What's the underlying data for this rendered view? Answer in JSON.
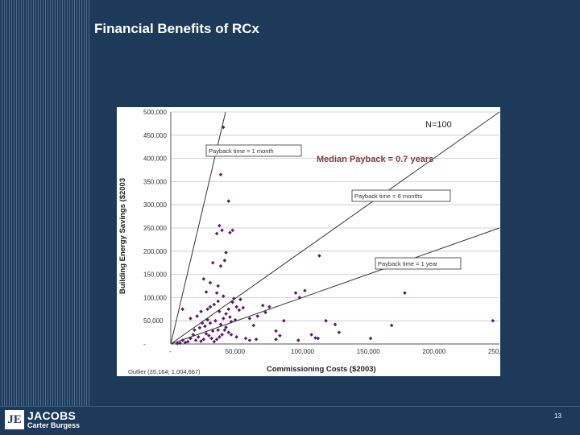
{
  "slide": {
    "title": "Financial Benefits of RCx",
    "page_number": "13"
  },
  "logo": {
    "mark": "JE",
    "name": "JACOBS",
    "subtitle": "Carter Burgess"
  },
  "colors": {
    "background": "#1d3a5b",
    "points": "#5a1a6e",
    "median_text": "#8b3a3a"
  },
  "chart_data": {
    "type": "scatter",
    "xlabel": "Commissioning Costs ($2003)",
    "ylabel": "Building Energy Savings ($2003",
    "xlim": [
      0,
      250000
    ],
    "ylim": [
      0,
      500000
    ],
    "x_ticks": [
      0,
      50000,
      100000,
      150000,
      200000,
      250000
    ],
    "x_tick_labels": [
      "-",
      "50,000",
      "100,000",
      "150,000",
      "200,000",
      "250,000"
    ],
    "y_ticks": [
      0,
      50000,
      100000,
      150000,
      200000,
      250000,
      300000,
      350000,
      400000,
      450000,
      500000
    ],
    "y_tick_labels": [
      "-",
      "50,000",
      "100,000",
      "150,000",
      "200,000",
      "250,000",
      "300,000",
      "350,000",
      "400,000",
      "450,000",
      "500,000"
    ],
    "annotations": {
      "n": "N=100",
      "median": "Median Payback = 0.7 years",
      "outlier": "Outlier (35,164; 1,004,667)"
    },
    "payback_lines": [
      {
        "label": "Payback time = 1 month",
        "months": 1
      },
      {
        "label": "Payback time = 6 months",
        "months": 6
      },
      {
        "label": "Payback time = 1 year",
        "months": 12
      }
    ],
    "points": [
      [
        40000,
        467000
      ],
      [
        38000,
        365000
      ],
      [
        44000,
        308000
      ],
      [
        37000,
        255000
      ],
      [
        39000,
        245000
      ],
      [
        35000,
        238000
      ],
      [
        47000,
        245000
      ],
      [
        45000,
        240000
      ],
      [
        42000,
        197000
      ],
      [
        32000,
        175000
      ],
      [
        41000,
        180000
      ],
      [
        38000,
        168000
      ],
      [
        25000,
        140000
      ],
      [
        30000,
        132000
      ],
      [
        36000,
        125000
      ],
      [
        27000,
        112000
      ],
      [
        35000,
        110000
      ],
      [
        40000,
        103000
      ],
      [
        48000,
        98000
      ],
      [
        53000,
        96000
      ],
      [
        9000,
        75000
      ],
      [
        15000,
        55000
      ],
      [
        20000,
        60000
      ],
      [
        23000,
        70000
      ],
      [
        28000,
        75000
      ],
      [
        30000,
        80000
      ],
      [
        33000,
        85000
      ],
      [
        37000,
        70000
      ],
      [
        42000,
        65000
      ],
      [
        45000,
        58000
      ],
      [
        47000,
        90000
      ],
      [
        50000,
        80000
      ],
      [
        52000,
        73000
      ],
      [
        55000,
        78000
      ],
      [
        60000,
        55000
      ],
      [
        63000,
        40000
      ],
      [
        66000,
        60000
      ],
      [
        70000,
        83000
      ],
      [
        72000,
        68000
      ],
      [
        75000,
        80000
      ],
      [
        80000,
        28000
      ],
      [
        83000,
        18000
      ],
      [
        86000,
        50000
      ],
      [
        95000,
        110000
      ],
      [
        98000,
        100000
      ],
      [
        102000,
        115000
      ],
      [
        113000,
        190000
      ],
      [
        118000,
        50000
      ],
      [
        125000,
        42000
      ],
      [
        128000,
        25000
      ],
      [
        107000,
        20000
      ],
      [
        110000,
        13000
      ],
      [
        112000,
        12000
      ],
      [
        97000,
        8000
      ],
      [
        80000,
        10000
      ],
      [
        65000,
        10000
      ],
      [
        60000,
        8000
      ],
      [
        57000,
        12000
      ],
      [
        50000,
        15000
      ],
      [
        46000,
        20000
      ],
      [
        44000,
        25000
      ],
      [
        41000,
        30000
      ],
      [
        39000,
        20000
      ],
      [
        37000,
        15000
      ],
      [
        35000,
        10000
      ],
      [
        33000,
        5000
      ],
      [
        31000,
        12000
      ],
      [
        29000,
        18000
      ],
      [
        27000,
        22000
      ],
      [
        25000,
        10000
      ],
      [
        23000,
        6000
      ],
      [
        21000,
        15000
      ],
      [
        19000,
        8000
      ],
      [
        17000,
        20000
      ],
      [
        15000,
        12000
      ],
      [
        13000,
        5000
      ],
      [
        11000,
        3000
      ],
      [
        9000,
        8000
      ],
      [
        7000,
        2000
      ],
      [
        5000,
        1000
      ],
      [
        18000,
        30000
      ],
      [
        22000,
        35000
      ],
      [
        26000,
        38000
      ],
      [
        30000,
        45000
      ],
      [
        34000,
        50000
      ],
      [
        38000,
        42000
      ],
      [
        42000,
        36000
      ],
      [
        46000,
        48000
      ],
      [
        49000,
        52000
      ],
      [
        36000,
        30000
      ],
      [
        168000,
        40000
      ],
      [
        178000,
        110000
      ],
      [
        152000,
        12000
      ],
      [
        245000,
        50000
      ],
      [
        32000,
        28000
      ],
      [
        28000,
        52000
      ],
      [
        24000,
        45000
      ],
      [
        40000,
        55000
      ],
      [
        44000,
        75000
      ],
      [
        36000,
        92000
      ]
    ]
  }
}
